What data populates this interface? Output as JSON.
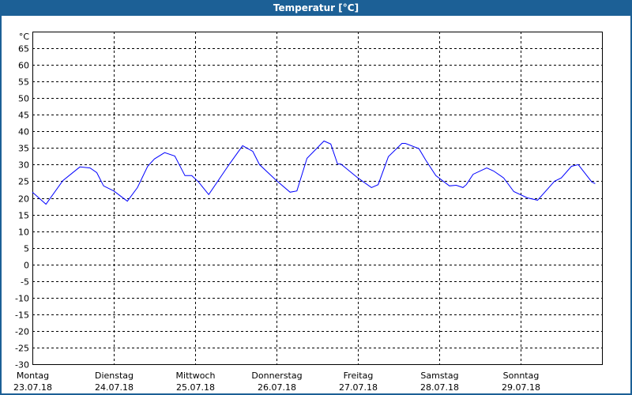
{
  "window": {
    "title": "Temperatur [°C]",
    "title_bar_color": "#1c6096"
  },
  "chart_data": {
    "type": "line",
    "title": "Temperatur [°C]",
    "ylabel": "°C",
    "ylim": [
      -30,
      70
    ],
    "yticks": [
      65,
      60,
      55,
      50,
      45,
      40,
      35,
      30,
      25,
      20,
      15,
      10,
      5,
      0,
      -5,
      -10,
      -15,
      -20,
      -25,
      -30
    ],
    "xlim": [
      "2018-07-23 00:00",
      "2018-07-30 00:00"
    ],
    "x_ticks": [
      {
        "day": "Montag",
        "date": "23.07.18"
      },
      {
        "day": "Dienstag",
        "date": "24.07.18"
      },
      {
        "day": "Mittwoch",
        "date": "25.07.18"
      },
      {
        "day": "Donnerstag",
        "date": "26.07.18"
      },
      {
        "day": "Freitag",
        "date": "27.07.18"
      },
      {
        "day": "Samstag",
        "date": "28.07.18"
      },
      {
        "day": "Sonntag",
        "date": "29.07.18"
      }
    ],
    "grid": true,
    "line_color": "#0000ff",
    "series": [
      {
        "points": [
          [
            "2018-07-23 00:00",
            21.7
          ],
          [
            "2018-07-23 04:00",
            18.1
          ],
          [
            "2018-07-23 09:00",
            25.2
          ],
          [
            "2018-07-23 14:00",
            29.3
          ],
          [
            "2018-07-23 17:00",
            29.0
          ],
          [
            "2018-07-23 19:00",
            27.6
          ],
          [
            "2018-07-23 21:00",
            23.6
          ],
          [
            "2018-07-24 00:00",
            22.1
          ],
          [
            "2018-07-24 04:00",
            19.0
          ],
          [
            "2018-07-24 07:00",
            23.1
          ],
          [
            "2018-07-24 10:00",
            29.5
          ],
          [
            "2018-07-24 12:00",
            31.7
          ],
          [
            "2018-07-24 15:00",
            33.6
          ],
          [
            "2018-07-24 18:00",
            32.6
          ],
          [
            "2018-07-24 21:00",
            26.7
          ],
          [
            "2018-07-24 23:00",
            26.7
          ],
          [
            "2018-07-25 01:00",
            24.8
          ],
          [
            "2018-07-25 04:00",
            21.0
          ],
          [
            "2018-07-25 10:00",
            30.0
          ],
          [
            "2018-07-25 14:00",
            35.7
          ],
          [
            "2018-07-25 17:00",
            34.0
          ],
          [
            "2018-07-25 19:00",
            30.0
          ],
          [
            "2018-07-26 00:00",
            25.2
          ],
          [
            "2018-07-26 04:00",
            21.7
          ],
          [
            "2018-07-26 06:00",
            22.1
          ],
          [
            "2018-07-26 09:00",
            31.9
          ],
          [
            "2018-07-26 14:00",
            37.1
          ],
          [
            "2018-07-26 16:00",
            36.2
          ],
          [
            "2018-07-26 18:00",
            30.2
          ],
          [
            "2018-07-26 19:00",
            30.2
          ],
          [
            "2018-07-27 00:00",
            26.0
          ],
          [
            "2018-07-27 04:00",
            23.1
          ],
          [
            "2018-07-27 06:00",
            24.0
          ],
          [
            "2018-07-27 09:00",
            32.4
          ],
          [
            "2018-07-27 13:00",
            36.4
          ],
          [
            "2018-07-27 14:00",
            36.4
          ],
          [
            "2018-07-27 18:00",
            34.8
          ],
          [
            "2018-07-27 20:00",
            31.4
          ],
          [
            "2018-07-27 23:00",
            26.7
          ],
          [
            "2018-07-28 03:00",
            23.6
          ],
          [
            "2018-07-28 05:00",
            23.8
          ],
          [
            "2018-07-28 07:00",
            23.1
          ],
          [
            "2018-07-28 08:00",
            24.0
          ],
          [
            "2018-07-28 10:00",
            27.1
          ],
          [
            "2018-07-28 14:00",
            29.0
          ],
          [
            "2018-07-28 16:00",
            28.1
          ],
          [
            "2018-07-28 19:00",
            26.0
          ],
          [
            "2018-07-28 22:00",
            21.9
          ],
          [
            "2018-07-29 02:00",
            20.0
          ],
          [
            "2018-07-29 05:00",
            19.3
          ],
          [
            "2018-07-29 10:00",
            25.0
          ],
          [
            "2018-07-29 12:00",
            26.0
          ],
          [
            "2018-07-29 15:00",
            29.5
          ],
          [
            "2018-07-29 17:00",
            30.0
          ],
          [
            "2018-07-29 21:00",
            24.8
          ],
          [
            "2018-07-29 22:00",
            24.3
          ]
        ]
      }
    ]
  }
}
